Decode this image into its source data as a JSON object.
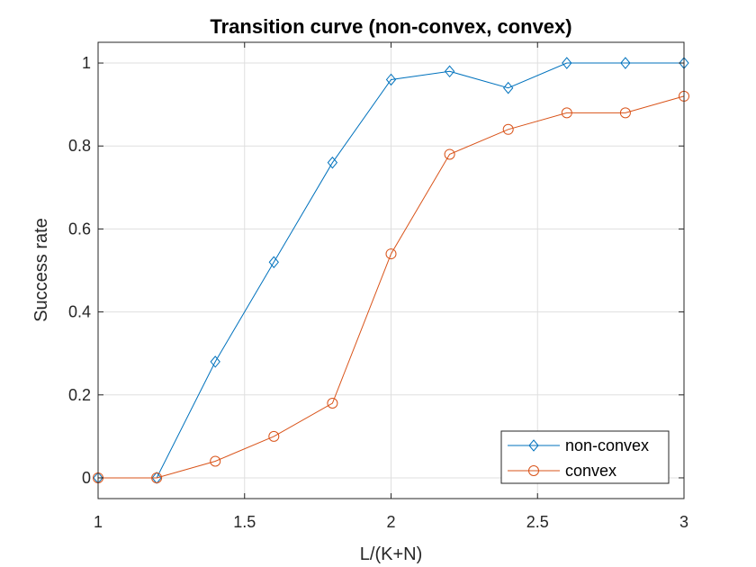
{
  "chart_data": {
    "type": "line",
    "title": "Transition curve (non-convex, convex)",
    "xlabel": "L/(K+N)",
    "ylabel": "Success rate",
    "xlim": [
      1,
      3
    ],
    "ylim": [
      -0.05,
      1.05
    ],
    "xticks": [
      1,
      1.5,
      2,
      2.5,
      3
    ],
    "xtick_labels": [
      "1",
      "1.5",
      "2",
      "2.5",
      "3"
    ],
    "yticks": [
      0,
      0.2,
      0.4,
      0.6,
      0.8,
      1
    ],
    "ytick_labels": [
      "0",
      "0.2",
      "0.4",
      "0.6",
      "0.8",
      "1"
    ],
    "grid": true,
    "legend_position": "bottom-right",
    "x": [
      1,
      1.2,
      1.4,
      1.6,
      1.8,
      2.0,
      2.2,
      2.4,
      2.6,
      2.8,
      3.0
    ],
    "series": [
      {
        "name": "non-convex",
        "marker": "diamond",
        "color": "#0072BD",
        "values": [
          0,
          0,
          0.28,
          0.52,
          0.76,
          0.96,
          0.98,
          0.94,
          1,
          1,
          1
        ]
      },
      {
        "name": "convex",
        "marker": "circle",
        "color": "#D95319",
        "values": [
          0,
          0,
          0.04,
          0.1,
          0.18,
          0.54,
          0.78,
          0.84,
          0.88,
          0.88,
          0.92
        ]
      }
    ]
  }
}
